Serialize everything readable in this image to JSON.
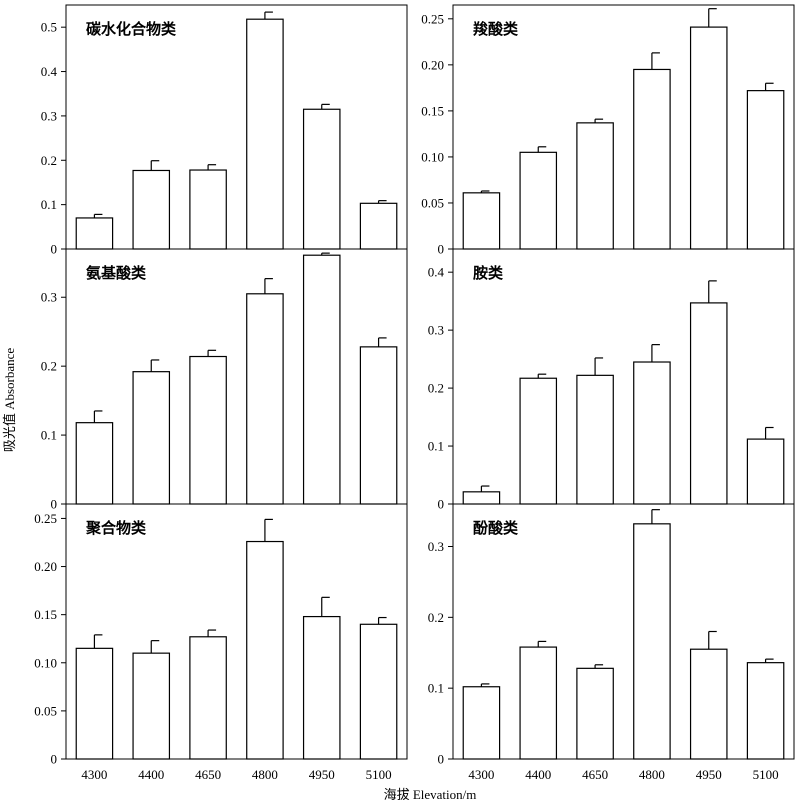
{
  "figure": {
    "ylabel": "吸光值 Absorbance",
    "xlabel": "海拔 Elevation/m"
  },
  "chart_data": [
    {
      "type": "bar",
      "title": "碳水化合物类",
      "categories": [
        "4300",
        "4400",
        "4650",
        "4800",
        "4950",
        "5100"
      ],
      "values": [
        0.07,
        0.177,
        0.178,
        0.518,
        0.315,
        0.103
      ],
      "errors": [
        0.008,
        0.022,
        0.012,
        0.016,
        0.011,
        0.006
      ],
      "yticks": [
        "0",
        "0.1",
        "0.2",
        "0.3",
        "0.4",
        "0.5"
      ],
      "ylim": [
        0,
        0.55
      ]
    },
    {
      "type": "bar",
      "title": "羧酸类",
      "categories": [
        "4300",
        "4400",
        "4650",
        "4800",
        "4950",
        "5100"
      ],
      "values": [
        0.061,
        0.105,
        0.137,
        0.195,
        0.241,
        0.172
      ],
      "errors": [
        0.002,
        0.006,
        0.004,
        0.018,
        0.02,
        0.008
      ],
      "yticks": [
        "0",
        "0.05",
        "0.10",
        "0.15",
        "0.20",
        "0.25"
      ],
      "ylim": [
        0,
        0.265
      ]
    },
    {
      "type": "bar",
      "title": "氨基酸类",
      "categories": [
        "4300",
        "4400",
        "4650",
        "4800",
        "4950",
        "5100"
      ],
      "values": [
        0.118,
        0.192,
        0.214,
        0.305,
        0.361,
        0.228
      ],
      "errors": [
        0.017,
        0.017,
        0.009,
        0.022,
        0.003,
        0.013
      ],
      "yticks": [
        "0",
        "0.1",
        "0.2",
        "0.3"
      ],
      "ylim": [
        0,
        0.37
      ]
    },
    {
      "type": "bar",
      "title": "胺类",
      "categories": [
        "4300",
        "4400",
        "4650",
        "4800",
        "4950",
        "5100"
      ],
      "values": [
        0.021,
        0.217,
        0.222,
        0.245,
        0.347,
        0.112
      ],
      "errors": [
        0.01,
        0.007,
        0.03,
        0.03,
        0.038,
        0.02
      ],
      "yticks": [
        "0",
        "0.1",
        "0.2",
        "0.3",
        "0.4"
      ],
      "ylim": [
        0,
        0.44
      ]
    },
    {
      "type": "bar",
      "title": "聚合物类",
      "categories": [
        "4300",
        "4400",
        "4650",
        "4800",
        "4950",
        "5100"
      ],
      "values": [
        0.115,
        0.11,
        0.127,
        0.226,
        0.148,
        0.14
      ],
      "errors": [
        0.014,
        0.013,
        0.007,
        0.023,
        0.02,
        0.007
      ],
      "yticks": [
        "0",
        "0.05",
        "0.10",
        "0.15",
        "0.20",
        "0.25"
      ],
      "ylim": [
        0,
        0.265
      ]
    },
    {
      "type": "bar",
      "title": "酚酸类",
      "categories": [
        "4300",
        "4400",
        "4650",
        "4800",
        "4950",
        "5100"
      ],
      "values": [
        0.102,
        0.158,
        0.128,
        0.332,
        0.155,
        0.136
      ],
      "errors": [
        0.004,
        0.008,
        0.005,
        0.02,
        0.025,
        0.005
      ],
      "yticks": [
        "0",
        "0.1",
        "0.2",
        "0.3"
      ],
      "ylim": [
        0,
        0.36
      ]
    }
  ]
}
